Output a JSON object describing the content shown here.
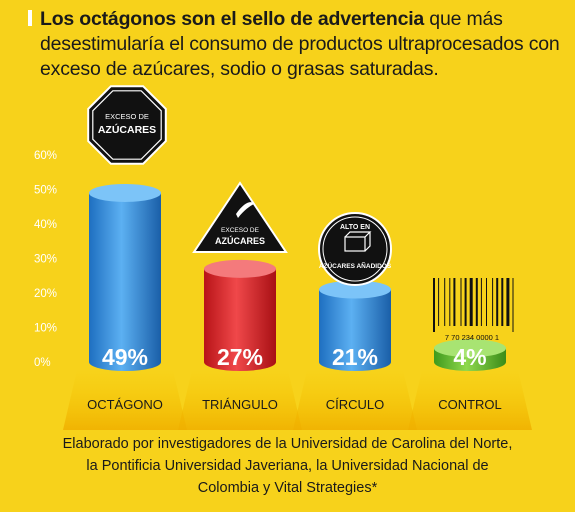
{
  "title": {
    "bold": "Los octágonos son el sello de advertencia",
    "rest": " que más desestimularía el consumo de productos ultraprocesados con exceso de azúcares, sodio o grasas saturadas."
  },
  "caption": [
    "Elaborado por investigadores de la Universidad de Carolina del Norte,",
    "la Pontificia Universidad Javeriana, la Universidad Nacional de",
    "Colombia y Vital Strategies*"
  ],
  "seals": {
    "octagon": [
      "EXCESO DE",
      "AZÚCARES"
    ],
    "triangle": [
      "EXCESO DE",
      "AZÚCARES"
    ],
    "circle": [
      "ALTO EN",
      "AZÚCARES AÑADIDOS"
    ],
    "barcode_number": "7 70 234 0000 1"
  },
  "colors": {
    "background": "#F7D21B",
    "octagon_bar": "#3D95E0",
    "triangle_bar": "#E0272B",
    "circle_bar": "#3D95E0",
    "control_bar": "#6BC23A"
  },
  "chart_data": {
    "type": "bar",
    "categories": [
      "OCTÁGONO",
      "TRIÁNGULO",
      "CÍRCULO",
      "CONTROL"
    ],
    "values": [
      49,
      27,
      21,
      4
    ],
    "value_labels": [
      "49%",
      "27%",
      "21%",
      "4%"
    ],
    "ytick_labels": [
      "0%",
      "10%",
      "20%",
      "30%",
      "40%",
      "50%",
      "60%"
    ],
    "ylim": [
      0,
      60
    ],
    "grid": false,
    "legend": "none"
  }
}
